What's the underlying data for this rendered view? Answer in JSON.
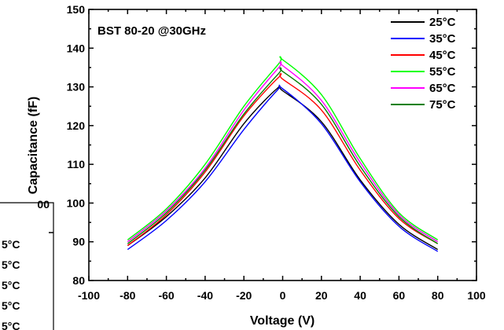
{
  "chart_data": {
    "type": "line",
    "title": "BST 80-20 @30GHz",
    "xlabel": "Voltage (V)",
    "ylabel": "Capacitance (fF)",
    "xlim": [
      -100,
      100
    ],
    "ylim": [
      80,
      150
    ],
    "x_ticks": [
      "-100",
      "-80",
      "-60",
      "-40",
      "-20",
      "0",
      "20",
      "40",
      "60",
      "80",
      "100"
    ],
    "y_ticks": [
      "80",
      "90",
      "100",
      "110",
      "120",
      "130",
      "140",
      "150"
    ],
    "grid": false,
    "legend_position": "top-right",
    "series": [
      {
        "name": "25°C",
        "color": "#000000",
        "x": [
          -80,
          -60,
          -40,
          -20,
          -3,
          0,
          20,
          40,
          60,
          80
        ],
        "y": [
          89.0,
          96.5,
          106.5,
          120.5,
          129.5,
          129.0,
          121.0,
          106.0,
          94.5,
          88.0
        ]
      },
      {
        "name": "35°C",
        "color": "#0000ff",
        "x": [
          -80,
          -60,
          -40,
          -20,
          -3,
          0,
          20,
          40,
          60,
          80
        ],
        "y": [
          88.0,
          95.5,
          105.5,
          119.0,
          129.0,
          129.5,
          120.5,
          105.5,
          94.0,
          87.5
        ]
      },
      {
        "name": "45°C",
        "color": "#ff0000",
        "x": [
          -80,
          -60,
          -40,
          -20,
          -2,
          0,
          20,
          40,
          60,
          80
        ],
        "y": [
          89.0,
          97.0,
          108.0,
          122.5,
          132.5,
          132.0,
          124.0,
          108.5,
          96.0,
          89.5
        ]
      },
      {
        "name": "55°C",
        "color": "#00ff00",
        "x": [
          -80,
          -60,
          -40,
          -20,
          -2,
          0,
          20,
          40,
          60,
          80
        ],
        "y": [
          90.5,
          98.5,
          110.0,
          125.0,
          136.0,
          137.0,
          128.0,
          111.5,
          97.5,
          90.5
        ]
      },
      {
        "name": "65°C",
        "color": "#ff00ff",
        "x": [
          -80,
          -60,
          -40,
          -20,
          -2,
          0,
          20,
          40,
          60,
          80
        ],
        "y": [
          90.0,
          98.0,
          109.0,
          124.0,
          135.0,
          135.5,
          126.5,
          110.5,
          97.0,
          90.0
        ]
      },
      {
        "name": "75°C",
        "color": "#008000",
        "x": [
          -80,
          -60,
          -40,
          -20,
          -2,
          0,
          20,
          40,
          60,
          80
        ],
        "y": [
          89.5,
          97.5,
          108.5,
          123.0,
          133.5,
          134.0,
          125.5,
          109.5,
          96.5,
          89.5
        ]
      }
    ]
  },
  "ghost_panel": {
    "ytick": "00",
    "legend_labels": [
      "5°C",
      "5°C",
      "5°C",
      "5°C",
      "5°C"
    ]
  }
}
